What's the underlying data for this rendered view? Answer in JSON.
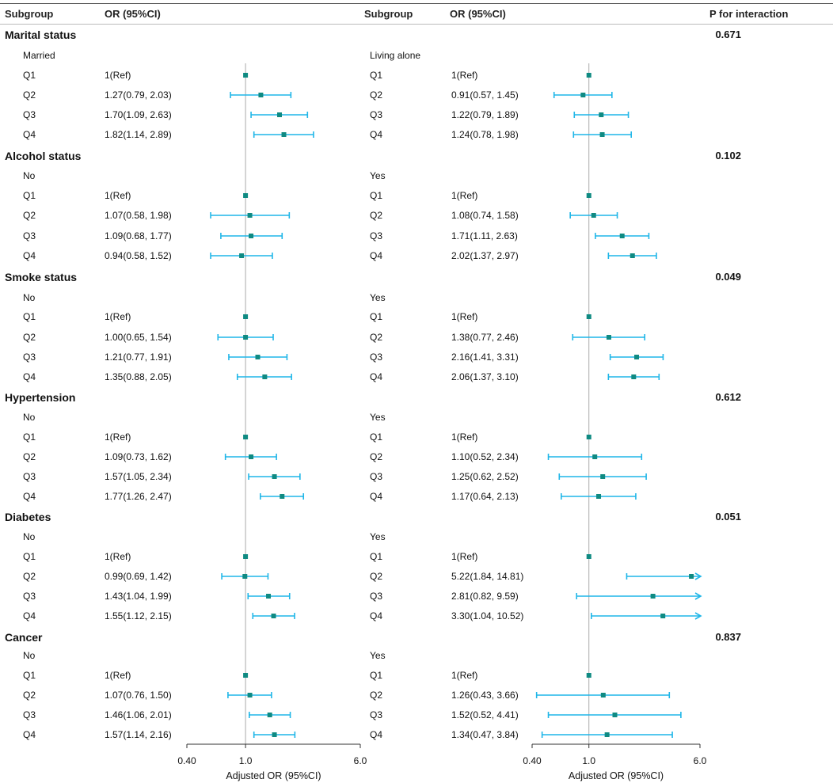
{
  "header": {
    "subgroup_left": "Subgroup",
    "or_left": "OR (95%CI)",
    "subgroup_right": "Subgroup",
    "or_right": "OR (95%CI)",
    "p_interaction": "P for interaction"
  },
  "colors": {
    "marker": "#0f8a82",
    "ci_line": "#1fb6e8",
    "reference_line": "#aaaaaa",
    "axis": "#333333"
  },
  "chart_data": {
    "type": "forest",
    "scale": "log",
    "xlim": [
      0.4,
      6.0
    ],
    "ticks": [
      {
        "value": 0.4,
        "label": "0.40"
      },
      {
        "value": 1.0,
        "label": "1.0"
      },
      {
        "value": 6.0,
        "label": "6.0"
      }
    ],
    "xlabel": "Adjusted OR (95%CI)",
    "reference_value": 1.0,
    "groups": [
      {
        "title": "Marital status",
        "p_interaction": "0.671",
        "left": {
          "label": "Married",
          "rows": [
            {
              "q": "Q1",
              "text": "1(Ref)",
              "or": 1.0,
              "lo": null,
              "hi": null
            },
            {
              "q": "Q2",
              "text": "1.27(0.79, 2.03)",
              "or": 1.27,
              "lo": 0.79,
              "hi": 2.03
            },
            {
              "q": "Q3",
              "text": "1.70(1.09, 2.63)",
              "or": 1.7,
              "lo": 1.09,
              "hi": 2.63
            },
            {
              "q": "Q4",
              "text": "1.82(1.14, 2.89)",
              "or": 1.82,
              "lo": 1.14,
              "hi": 2.89
            }
          ]
        },
        "right": {
          "label": "Living alone",
          "rows": [
            {
              "q": "Q1",
              "text": "1(Ref)",
              "or": 1.0,
              "lo": null,
              "hi": null
            },
            {
              "q": "Q2",
              "text": "0.91(0.57, 1.45)",
              "or": 0.91,
              "lo": 0.57,
              "hi": 1.45
            },
            {
              "q": "Q3",
              "text": "1.22(0.79, 1.89)",
              "or": 1.22,
              "lo": 0.79,
              "hi": 1.89
            },
            {
              "q": "Q4",
              "text": "1.24(0.78, 1.98)",
              "or": 1.24,
              "lo": 0.78,
              "hi": 1.98
            }
          ]
        }
      },
      {
        "title": "Alcohol status",
        "p_interaction": "0.102",
        "left": {
          "label": "No",
          "rows": [
            {
              "q": "Q1",
              "text": "1(Ref)",
              "or": 1.0,
              "lo": null,
              "hi": null
            },
            {
              "q": "Q2",
              "text": "1.07(0.58, 1.98)",
              "or": 1.07,
              "lo": 0.58,
              "hi": 1.98
            },
            {
              "q": "Q3",
              "text": "1.09(0.68, 1.77)",
              "or": 1.09,
              "lo": 0.68,
              "hi": 1.77
            },
            {
              "q": "Q4",
              "text": "0.94(0.58, 1.52)",
              "or": 0.94,
              "lo": 0.58,
              "hi": 1.52
            }
          ]
        },
        "right": {
          "label": "Yes",
          "rows": [
            {
              "q": "Q1",
              "text": "1(Ref)",
              "or": 1.0,
              "lo": null,
              "hi": null
            },
            {
              "q": "Q2",
              "text": "1.08(0.74, 1.58)",
              "or": 1.08,
              "lo": 0.74,
              "hi": 1.58
            },
            {
              "q": "Q3",
              "text": "1.71(1.11, 2.63)",
              "or": 1.71,
              "lo": 1.11,
              "hi": 2.63
            },
            {
              "q": "Q4",
              "text": "2.02(1.37, 2.97)",
              "or": 2.02,
              "lo": 1.37,
              "hi": 2.97
            }
          ]
        }
      },
      {
        "title": "Smoke status",
        "p_interaction": "0.049",
        "left": {
          "label": "No",
          "rows": [
            {
              "q": "Q1",
              "text": "1(Ref)",
              "or": 1.0,
              "lo": null,
              "hi": null
            },
            {
              "q": "Q2",
              "text": "1.00(0.65, 1.54)",
              "or": 1.0,
              "lo": 0.65,
              "hi": 1.54
            },
            {
              "q": "Q3",
              "text": "1.21(0.77, 1.91)",
              "or": 1.21,
              "lo": 0.77,
              "hi": 1.91
            },
            {
              "q": "Q4",
              "text": "1.35(0.88, 2.05)",
              "or": 1.35,
              "lo": 0.88,
              "hi": 2.05
            }
          ]
        },
        "right": {
          "label": "Yes",
          "rows": [
            {
              "q": "Q1",
              "text": "1(Ref)",
              "or": 1.0,
              "lo": null,
              "hi": null
            },
            {
              "q": "Q2",
              "text": "1.38(0.77, 2.46)",
              "or": 1.38,
              "lo": 0.77,
              "hi": 2.46
            },
            {
              "q": "Q3",
              "text": "2.16(1.41, 3.31)",
              "or": 2.16,
              "lo": 1.41,
              "hi": 3.31
            },
            {
              "q": "Q4",
              "text": "2.06(1.37, 3.10)",
              "or": 2.06,
              "lo": 1.37,
              "hi": 3.1
            }
          ]
        }
      },
      {
        "title": "Hypertension",
        "p_interaction": "0.612",
        "left": {
          "label": "No",
          "rows": [
            {
              "q": "Q1",
              "text": "1(Ref)",
              "or": 1.0,
              "lo": null,
              "hi": null
            },
            {
              "q": "Q2",
              "text": "1.09(0.73, 1.62)",
              "or": 1.09,
              "lo": 0.73,
              "hi": 1.62
            },
            {
              "q": "Q3",
              "text": "1.57(1.05, 2.34)",
              "or": 1.57,
              "lo": 1.05,
              "hi": 2.34
            },
            {
              "q": "Q4",
              "text": "1.77(1.26, 2.47)",
              "or": 1.77,
              "lo": 1.26,
              "hi": 2.47
            }
          ]
        },
        "right": {
          "label": "Yes",
          "rows": [
            {
              "q": "Q1",
              "text": "1(Ref)",
              "or": 1.0,
              "lo": null,
              "hi": null
            },
            {
              "q": "Q2",
              "text": "1.10(0.52, 2.34)",
              "or": 1.1,
              "lo": 0.52,
              "hi": 2.34
            },
            {
              "q": "Q3",
              "text": "1.25(0.62, 2.52)",
              "or": 1.25,
              "lo": 0.62,
              "hi": 2.52
            },
            {
              "q": "Q4",
              "text": "1.17(0.64, 2.13)",
              "or": 1.17,
              "lo": 0.64,
              "hi": 2.13
            }
          ]
        }
      },
      {
        "title": "Diabetes",
        "p_interaction": "0.051",
        "left": {
          "label": "No",
          "rows": [
            {
              "q": "Q1",
              "text": "1(Ref)",
              "or": 1.0,
              "lo": null,
              "hi": null
            },
            {
              "q": "Q2",
              "text": "0.99(0.69, 1.42)",
              "or": 0.99,
              "lo": 0.69,
              "hi": 1.42
            },
            {
              "q": "Q3",
              "text": "1.43(1.04, 1.99)",
              "or": 1.43,
              "lo": 1.04,
              "hi": 1.99
            },
            {
              "q": "Q4",
              "text": "1.55(1.12, 2.15)",
              "or": 1.55,
              "lo": 1.12,
              "hi": 2.15
            }
          ]
        },
        "right": {
          "label": "Yes",
          "rows": [
            {
              "q": "Q1",
              "text": "1(Ref)",
              "or": 1.0,
              "lo": null,
              "hi": null
            },
            {
              "q": "Q2",
              "text": "5.22(1.84, 14.81)",
              "or": 5.22,
              "lo": 1.84,
              "hi": 14.81
            },
            {
              "q": "Q3",
              "text": "2.81(0.82, 9.59)",
              "or": 2.81,
              "lo": 0.82,
              "hi": 9.59
            },
            {
              "q": "Q4",
              "text": "3.30(1.04, 10.52)",
              "or": 3.3,
              "lo": 1.04,
              "hi": 10.52
            }
          ]
        }
      },
      {
        "title": "Cancer",
        "p_interaction": "0.837",
        "left": {
          "label": "No",
          "rows": [
            {
              "q": "Q1",
              "text": "1(Ref)",
              "or": 1.0,
              "lo": null,
              "hi": null
            },
            {
              "q": "Q2",
              "text": "1.07(0.76, 1.50)",
              "or": 1.07,
              "lo": 0.76,
              "hi": 1.5
            },
            {
              "q": "Q3",
              "text": "1.46(1.06, 2.01)",
              "or": 1.46,
              "lo": 1.06,
              "hi": 2.01
            },
            {
              "q": "Q4",
              "text": "1.57(1.14, 2.16)",
              "or": 1.57,
              "lo": 1.14,
              "hi": 2.16
            }
          ]
        },
        "right": {
          "label": "Yes",
          "rows": [
            {
              "q": "Q1",
              "text": "1(Ref)",
              "or": 1.0,
              "lo": null,
              "hi": null
            },
            {
              "q": "Q2",
              "text": "1.26(0.43, 3.66)",
              "or": 1.26,
              "lo": 0.43,
              "hi": 3.66
            },
            {
              "q": "Q3",
              "text": "1.52(0.52, 4.41)",
              "or": 1.52,
              "lo": 0.52,
              "hi": 4.41
            },
            {
              "q": "Q4",
              "text": "1.34(0.47, 3.84)",
              "or": 1.34,
              "lo": 0.47,
              "hi": 3.84
            }
          ]
        }
      }
    ]
  }
}
